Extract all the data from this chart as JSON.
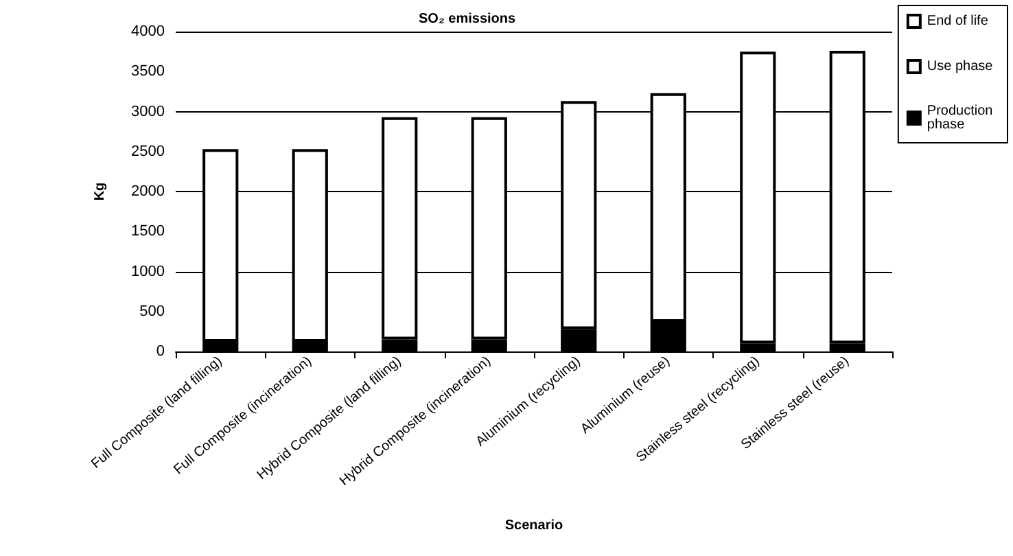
{
  "chart_data": {
    "type": "bar",
    "title": "SO₂ emissions",
    "xlabel": "Scenario",
    "ylabel": "Kg",
    "categories": [
      "Full Composite (land filling)",
      "Full Composite (incineration)",
      "Hybrid Composite (land filling)",
      "Hybrid Composite (incineration)",
      "Aluminium (recycling)",
      "Aluminium (reuse)",
      "Stainless steel (recycling)",
      "Stainless steel (reuse)"
    ],
    "stacked": true,
    "series": [
      {
        "name": "Production phase",
        "color": "#000000",
        "values": [
          120,
          120,
          150,
          150,
          280,
          370,
          100,
          100
        ]
      },
      {
        "name": "Use phase",
        "color": "#ffffff",
        "values": [
          2410,
          2410,
          2780,
          2780,
          2850,
          2860,
          3650,
          3660
        ]
      },
      {
        "name": "End of life",
        "color": "#ffffff",
        "values": [
          null,
          null,
          null,
          null,
          null,
          null,
          null,
          null
        ]
      }
    ],
    "ylim": [
      0,
      4000
    ],
    "yticks": [
      0,
      500,
      1000,
      1500,
      2000,
      2500,
      3000,
      3500,
      4000
    ],
    "grid": "y",
    "legend": "top right"
  }
}
